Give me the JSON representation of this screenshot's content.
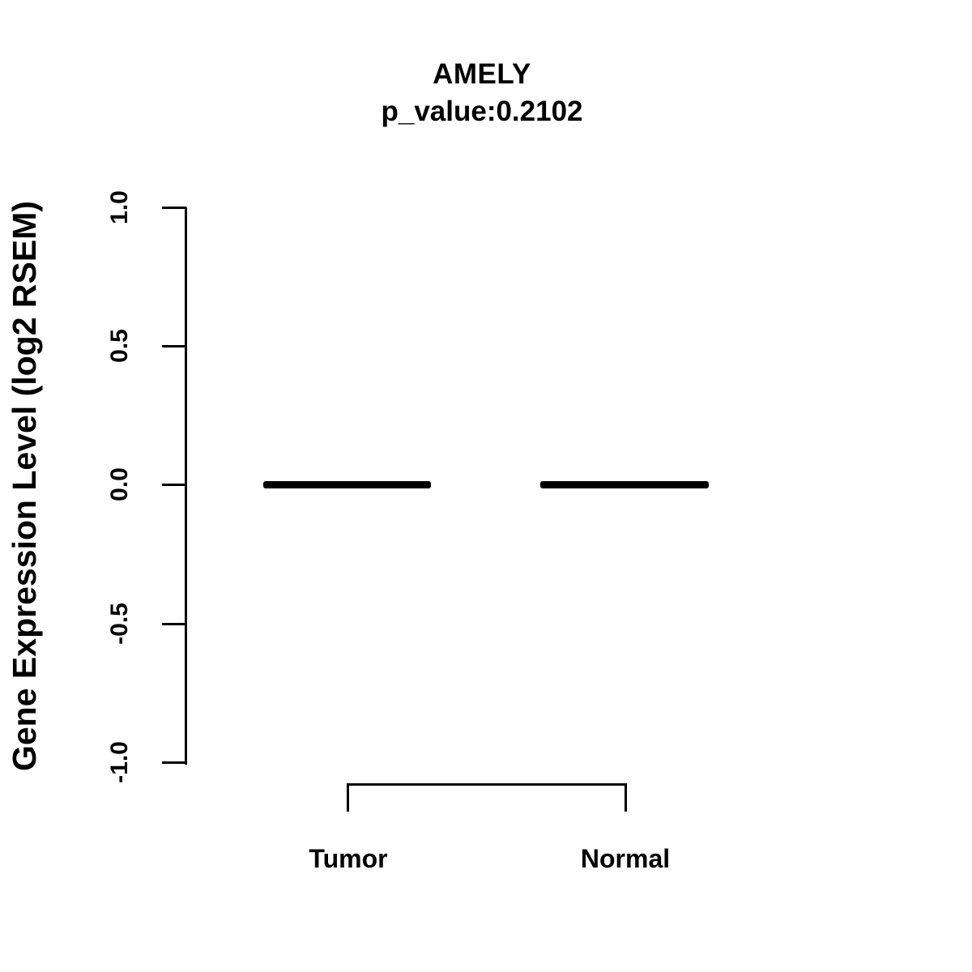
{
  "title": "AMELY",
  "subtitle": "p_value:0.2102",
  "y_axis": {
    "label": "Gene Expression Level (log2 RSEM)",
    "ticks": [
      "1.0",
      "0.5",
      "0.0",
      "-0.5",
      "-1.0"
    ]
  },
  "groups": [
    {
      "label": "Tumor"
    },
    {
      "label": "Normal"
    }
  ],
  "colors": {
    "foreground": "#000000",
    "background": "#ffffff"
  },
  "chart_data": {
    "type": "boxplot",
    "title": "AMELY",
    "subtitle": "p_value:0.2102",
    "p_value": 0.2102,
    "gene": "AMELY",
    "ylabel": "Gene Expression Level (log2 RSEM)",
    "xlabel": "",
    "ylim": [
      -1.0,
      1.0
    ],
    "yticks": [
      1.0,
      0.5,
      0.0,
      -0.5,
      -1.0
    ],
    "categories": [
      "Tumor",
      "Normal"
    ],
    "series": [
      {
        "name": "Tumor",
        "median": 0.0,
        "q1": 0.0,
        "q3": 0.0,
        "min": 0.0,
        "max": 0.0
      },
      {
        "name": "Normal",
        "median": 0.0,
        "q1": 0.0,
        "q3": 0.0,
        "min": 0.0,
        "max": 0.0
      }
    ],
    "annotations": [
      "comparison bracket between Tumor and Normal group centers"
    ],
    "grid": false,
    "legend": false
  }
}
